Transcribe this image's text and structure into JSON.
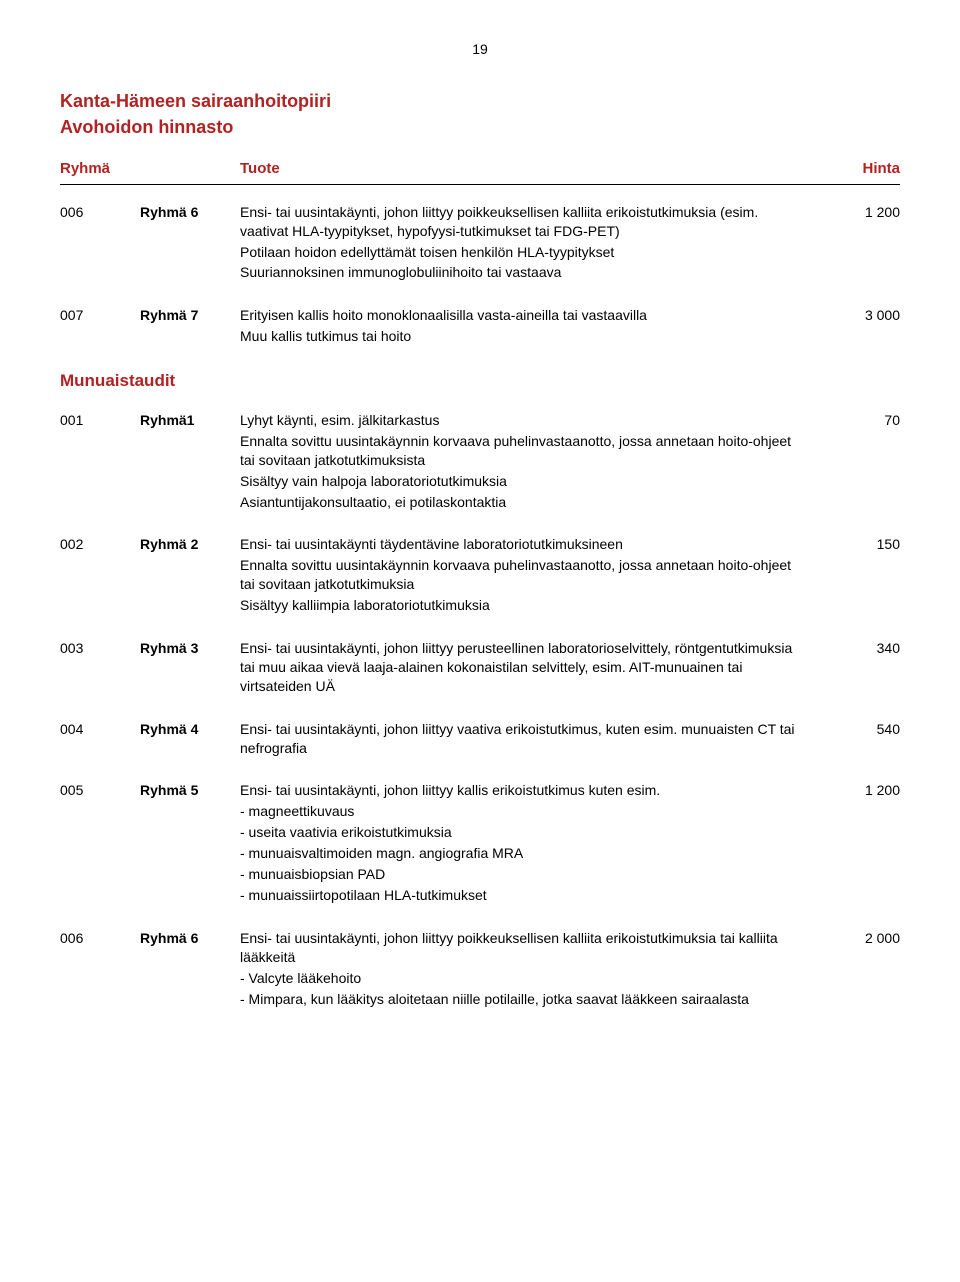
{
  "page_number": "19",
  "title_line1": "Kanta-Hämeen sairaanhoitopiiri",
  "title_line2": "Avohoidon hinnasto",
  "headers": {
    "ryhma": "Ryhmä",
    "tuote": "Tuote",
    "hinta": "Hinta"
  },
  "section_heading": "Munuaistaudit",
  "rows_top": [
    {
      "code": "006",
      "label": "Ryhmä 6",
      "price": "1 200",
      "lines": [
        "Ensi- tai uusintakäynti, johon liittyy poikkeuksellisen kalliita erikoistutkimuksia (esim. vaativat HLA-tyypitykset, hypofyysi-tutkimukset tai FDG-PET)",
        "Potilaan hoidon edellyttämät toisen henkilön HLA-tyypitykset",
        "Suuriannoksinen immunoglobuliinihoito tai vastaava"
      ]
    },
    {
      "code": "007",
      "label": "Ryhmä 7",
      "price": "3 000",
      "lines": [
        "Erityisen kallis hoito monoklonaalisilla vasta-aineilla tai vastaavilla",
        "Muu kallis tutkimus tai hoito"
      ]
    }
  ],
  "rows_section": [
    {
      "code": "001",
      "label": "Ryhmä1",
      "price": "70",
      "lines": [
        "Lyhyt käynti, esim. jälkitarkastus",
        "Ennalta sovittu uusintakäynnin korvaava puhelinvastaanotto, jossa annetaan hoito-ohjeet tai sovitaan jatkotutkimuksista",
        "Sisältyy vain halpoja laboratoriotutkimuksia",
        "Asiantuntijakonsultaatio, ei potilaskontaktia"
      ]
    },
    {
      "code": "002",
      "label": "Ryhmä 2",
      "price": "150",
      "lines": [
        "Ensi- tai uusintakäynti täydentävine laboratoriotutkimuksineen",
        "Ennalta sovittu uusintakäynnin korvaava puhelinvastaanotto, jossa annetaan hoito-ohjeet tai sovitaan jatkotutkimuksia",
        "Sisältyy kalliimpia laboratoriotutkimuksia"
      ]
    },
    {
      "code": "003",
      "label": "Ryhmä 3",
      "price": "340",
      "lines": [
        "Ensi- tai uusintakäynti, johon liittyy perusteellinen laboratorioselvittely, röntgentutkimuksia tai muu aikaa vievä laaja-alainen kokonaistilan selvittely, esim. AIT-munuainen tai virtsateiden UÄ"
      ]
    },
    {
      "code": "004",
      "label": "Ryhmä 4",
      "price": "540",
      "lines": [
        "Ensi- tai uusintakäynti, johon liittyy vaativa erikoistutkimus, kuten esim. munuaisten CT tai nefrografia"
      ]
    },
    {
      "code": "005",
      "label": "Ryhmä 5",
      "price": "1 200",
      "lines": [
        "Ensi- tai uusintakäynti, johon liittyy kallis erikoistutkimus kuten esim.",
        "- magneettikuvaus",
        "- useita vaativia erikoistutkimuksia",
        "- munuaisvaltimoiden magn. angiografia MRA",
        "- munuaisbiopsian PAD",
        "- munuaissiirtopotilaan HLA-tutkimukset"
      ]
    },
    {
      "code": "006",
      "label": "Ryhmä 6",
      "price": "2 000",
      "lines": [
        "Ensi- tai uusintakäynti, johon liittyy poikkeuksellisen kalliita erikoistutkimuksia tai kalliita lääkkeitä",
        "- Valcyte lääkehoito",
        "- Mimpara, kun lääkitys aloitetaan niille potilaille, jotka saavat lääkkeen sairaalasta"
      ]
    }
  ]
}
